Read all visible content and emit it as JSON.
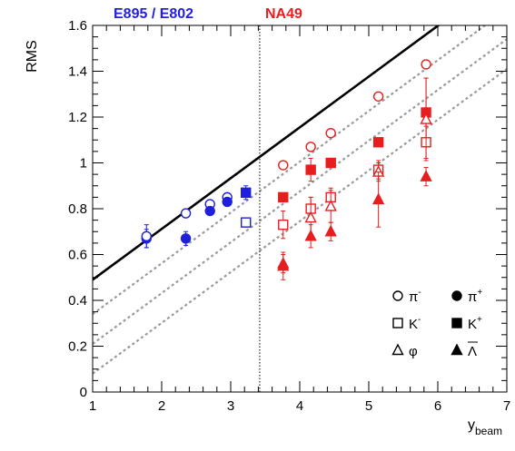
{
  "chart_data": {
    "type": "scatter",
    "title": "",
    "ylabel": "RMS",
    "xlabel_main": "y",
    "xlabel_sub": "beam",
    "xlim": [
      1,
      7
    ],
    "ylim": [
      0,
      1.6
    ],
    "x_ticks": [
      1,
      2,
      3,
      4,
      5,
      6,
      7
    ],
    "x_tick_labels": [
      "1",
      "2",
      "3",
      "4",
      "5",
      "6",
      "7"
    ],
    "y_ticks": [
      0,
      0.2,
      0.4,
      0.6,
      0.8,
      1.0,
      1.2,
      1.4,
      1.6
    ],
    "y_tick_labels": [
      "0",
      "0.2",
      "0.4",
      "0.6",
      "0.8",
      "1",
      "1.2",
      "1.4",
      "1.6"
    ],
    "grid": false,
    "header_labels": [
      {
        "text": "E895 / E802",
        "color": "#1f1fdd"
      },
      {
        "text": "NA49",
        "color": "#e61e1e"
      }
    ],
    "divider_x": 3.42,
    "reference_lines": [
      {
        "style": "solid",
        "color": "#000000",
        "x": [
          1,
          7
        ],
        "y": [
          0.49,
          1.82
        ]
      },
      {
        "style": "dotted",
        "color": "#9a9a9a",
        "x": [
          1,
          7
        ],
        "y": [
          0.34,
          1.67
        ]
      },
      {
        "style": "dotted",
        "color": "#9a9a9a",
        "x": [
          1,
          7
        ],
        "y": [
          0.21,
          1.54
        ]
      },
      {
        "style": "dotted",
        "color": "#9a9a9a",
        "x": [
          1,
          7
        ],
        "y": [
          0.08,
          1.41
        ]
      }
    ],
    "legend_position": "bottom-right",
    "legend": [
      {
        "marker": "circle",
        "filled": false,
        "label_main": "π",
        "label_sup": "-",
        "bar": false
      },
      {
        "marker": "circle",
        "filled": true,
        "label_main": "π",
        "label_sup": "+",
        "bar": false
      },
      {
        "marker": "square",
        "filled": false,
        "label_main": "K",
        "label_sup": "-",
        "bar": false
      },
      {
        "marker": "square",
        "filled": true,
        "label_main": "K",
        "label_sup": "+",
        "bar": false
      },
      {
        "marker": "triangle",
        "filled": false,
        "label_main": "φ",
        "label_sup": "",
        "bar": false
      },
      {
        "marker": "triangle",
        "filled": true,
        "label_main": "Λ",
        "label_sup": "",
        "bar": true
      }
    ],
    "series": [
      {
        "marker": "circle",
        "filled": false,
        "color": "#1f1fdd",
        "points": [
          {
            "x": 2.35,
            "y": 0.78,
            "err": 0
          },
          {
            "x": 2.7,
            "y": 0.82,
            "err": 0
          },
          {
            "x": 2.95,
            "y": 0.85,
            "err": 0
          }
        ]
      },
      {
        "marker": "circle",
        "filled": true,
        "color": "#1f1fdd",
        "points": [
          {
            "x": 1.78,
            "y": 0.67,
            "err": 0.04
          },
          {
            "x": 2.35,
            "y": 0.67,
            "err": 0.03
          },
          {
            "x": 2.7,
            "y": 0.79,
            "err": 0
          },
          {
            "x": 2.95,
            "y": 0.83,
            "err": 0
          }
        ]
      },
      {
        "marker": "circle",
        "filled": false,
        "color": "#1f1fdd",
        "points": [
          {
            "x": 1.78,
            "y": 0.68,
            "err": 0.05
          }
        ]
      },
      {
        "marker": "square",
        "filled": false,
        "color": "#1f1fdd",
        "points": [
          {
            "x": 3.22,
            "y": 0.74,
            "err": 0
          }
        ]
      },
      {
        "marker": "square",
        "filled": true,
        "color": "#1f1fdd",
        "points": [
          {
            "x": 3.22,
            "y": 0.87,
            "err": 0.03
          }
        ]
      },
      {
        "marker": "circle",
        "filled": false,
        "color": "#e61e1e",
        "points": [
          {
            "x": 3.76,
            "y": 0.99,
            "err": 0
          },
          {
            "x": 4.16,
            "y": 1.07,
            "err": 0
          },
          {
            "x": 4.45,
            "y": 1.13,
            "err": 0
          },
          {
            "x": 5.14,
            "y": 1.29,
            "err": 0
          },
          {
            "x": 5.83,
            "y": 1.43,
            "err": 0
          }
        ]
      },
      {
        "marker": "square",
        "filled": true,
        "color": "#e61e1e",
        "points": [
          {
            "x": 3.76,
            "y": 0.85,
            "err": 0
          },
          {
            "x": 4.16,
            "y": 0.97,
            "err": 0.05
          },
          {
            "x": 4.45,
            "y": 1.0,
            "err": 0
          },
          {
            "x": 5.14,
            "y": 1.09,
            "err": 0
          },
          {
            "x": 5.83,
            "y": 1.22,
            "err": 0.15
          }
        ]
      },
      {
        "marker": "square",
        "filled": false,
        "color": "#e61e1e",
        "points": [
          {
            "x": 3.76,
            "y": 0.73,
            "err": 0.06
          },
          {
            "x": 4.16,
            "y": 0.8,
            "err": 0.05
          },
          {
            "x": 4.45,
            "y": 0.85,
            "err": 0.04
          },
          {
            "x": 5.14,
            "y": 0.97,
            "err": 0.04
          },
          {
            "x": 5.83,
            "y": 1.09,
            "err": 0.07
          }
        ]
      },
      {
        "marker": "triangle",
        "filled": false,
        "color": "#e61e1e",
        "points": [
          {
            "x": 3.76,
            "y": 0.56,
            "err": 0.04
          },
          {
            "x": 4.16,
            "y": 0.76,
            "err": 0.09
          },
          {
            "x": 4.45,
            "y": 0.81,
            "err": 0.07
          },
          {
            "x": 5.14,
            "y": 0.96,
            "err": 0.04
          },
          {
            "x": 5.83,
            "y": 1.19,
            "err": 0.18
          }
        ]
      },
      {
        "marker": "triangle",
        "filled": true,
        "color": "#e61e1e",
        "points": [
          {
            "x": 3.76,
            "y": 0.55,
            "err": 0.06
          },
          {
            "x": 4.16,
            "y": 0.68,
            "err": 0.05
          },
          {
            "x": 4.45,
            "y": 0.7,
            "err": 0.04
          },
          {
            "x": 5.14,
            "y": 0.84,
            "err": 0.12
          },
          {
            "x": 5.83,
            "y": 0.94,
            "err": 0.04
          }
        ]
      }
    ]
  }
}
